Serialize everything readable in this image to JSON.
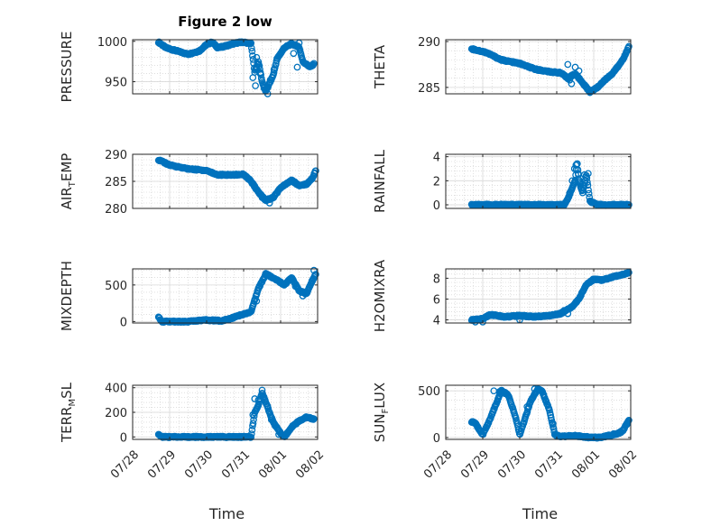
{
  "figure": {
    "title": "Figure 2 low"
  },
  "colors": {
    "marker": "#0072BD",
    "axis": "#262626",
    "grid": "#cccccc",
    "background": "#ffffff"
  },
  "chart_data": [
    {
      "id": "pressure",
      "type": "scatter",
      "title": "Figure 2 low",
      "ylabel_parts": [
        "PRESSURE"
      ],
      "xlabel": "",
      "ylim": [
        935,
        1002
      ],
      "yticks": [
        950,
        1000
      ],
      "xlim": [
        "07/28",
        "08/02"
      ],
      "x_unit": "days since 07/28",
      "x_ticks_shown": false,
      "keyframes": [
        [
          0.7,
          999
        ],
        [
          0.9,
          992
        ],
        [
          1.2,
          988
        ],
        [
          1.5,
          984
        ],
        [
          1.8,
          988
        ],
        [
          2.0,
          996
        ],
        [
          2.15,
          999
        ],
        [
          2.3,
          992
        ],
        [
          2.5,
          994
        ],
        [
          2.8,
          998
        ],
        [
          3.0,
          999
        ],
        [
          3.1,
          998
        ],
        [
          3.2,
          997
        ],
        [
          3.3,
          962
        ],
        [
          3.4,
          975
        ],
        [
          3.5,
          950
        ],
        [
          3.6,
          938
        ],
        [
          3.7,
          948
        ],
        [
          3.8,
          958
        ],
        [
          3.9,
          978
        ],
        [
          4.1,
          992
        ],
        [
          4.3,
          997
        ],
        [
          4.5,
          993
        ],
        [
          4.6,
          975
        ],
        [
          4.8,
          968
        ],
        [
          4.9,
          972
        ]
      ],
      "scatter_extra": [
        [
          3.25,
          955
        ],
        [
          3.32,
          945
        ],
        [
          3.35,
          980
        ],
        [
          3.45,
          960
        ],
        [
          3.55,
          942
        ],
        [
          3.65,
          935
        ],
        [
          3.72,
          952
        ],
        [
          3.82,
          965
        ],
        [
          4.35,
          985
        ],
        [
          4.45,
          968
        ],
        [
          4.5,
          998
        ]
      ]
    },
    {
      "id": "theta",
      "type": "scatter",
      "ylabel_parts": [
        "THETA"
      ],
      "xlabel": "",
      "ylim": [
        284.3,
        290.2
      ],
      "yticks": [
        285,
        290
      ],
      "xlim": [
        "07/28",
        "08/02"
      ],
      "x_ticks_shown": false,
      "keyframes": [
        [
          0.7,
          289.2
        ],
        [
          1.1,
          288.8
        ],
        [
          1.5,
          288.0
        ],
        [
          2.0,
          287.6
        ],
        [
          2.4,
          287.0
        ],
        [
          2.8,
          286.7
        ],
        [
          3.1,
          286.6
        ],
        [
          3.3,
          286.0
        ],
        [
          3.5,
          286.5
        ],
        [
          3.7,
          285.5
        ],
        [
          3.9,
          284.5
        ],
        [
          4.1,
          285.0
        ],
        [
          4.3,
          285.8
        ],
        [
          4.5,
          286.5
        ],
        [
          4.7,
          287.5
        ],
        [
          4.85,
          288.5
        ],
        [
          4.95,
          289.5
        ]
      ],
      "scatter_extra": [
        [
          3.3,
          287.5
        ],
        [
          3.35,
          285.8
        ],
        [
          3.5,
          287.2
        ],
        [
          3.6,
          286.8
        ],
        [
          3.4,
          285.4
        ]
      ]
    },
    {
      "id": "air_temp",
      "type": "scatter",
      "ylabel_parts": [
        "AIR",
        "T",
        "EMP"
      ],
      "xlabel": "",
      "ylim": [
        280,
        290
      ],
      "yticks": [
        280,
        285,
        290
      ],
      "xlim": [
        "07/28",
        "08/02"
      ],
      "x_ticks_shown": false,
      "keyframes": [
        [
          0.7,
          289.0
        ],
        [
          1.0,
          288.0
        ],
        [
          1.5,
          287.3
        ],
        [
          2.0,
          287.0
        ],
        [
          2.3,
          286.2
        ],
        [
          2.7,
          286.2
        ],
        [
          3.0,
          286.3
        ],
        [
          3.2,
          285.0
        ],
        [
          3.4,
          283.0
        ],
        [
          3.6,
          281.5
        ],
        [
          3.8,
          282.0
        ],
        [
          4.0,
          283.8
        ],
        [
          4.3,
          285.2
        ],
        [
          4.5,
          284.2
        ],
        [
          4.7,
          284.5
        ],
        [
          4.85,
          285.5
        ],
        [
          4.95,
          287.0
        ]
      ],
      "scatter_extra": [
        [
          3.3,
          284.0
        ],
        [
          3.5,
          282.0
        ],
        [
          3.7,
          281.0
        ]
      ]
    },
    {
      "id": "rainfall",
      "type": "scatter",
      "ylabel_parts": [
        "RAINFALL"
      ],
      "xlabel": "",
      "ylim": [
        -0.3,
        4.2
      ],
      "yticks": [
        0,
        2,
        4
      ],
      "xlim": [
        "07/28",
        "08/02"
      ],
      "x_ticks_shown": false,
      "keyframes": [
        [
          0.7,
          0
        ],
        [
          3.2,
          0
        ],
        [
          3.3,
          0.5
        ],
        [
          3.5,
          2.0
        ],
        [
          3.55,
          3.6
        ],
        [
          3.6,
          2.0
        ],
        [
          3.7,
          1.0
        ],
        [
          3.8,
          2.5
        ],
        [
          3.9,
          0.3
        ],
        [
          4.1,
          0
        ],
        [
          4.95,
          0
        ]
      ],
      "scatter_extra": [
        [
          3.35,
          1.0
        ],
        [
          3.42,
          2.0
        ],
        [
          3.48,
          3.0
        ],
        [
          3.52,
          3.3
        ],
        [
          3.58,
          2.6
        ],
        [
          3.65,
          1.8
        ],
        [
          3.75,
          2.5
        ],
        [
          3.85,
          2.6
        ],
        [
          3.95,
          0.2
        ],
        [
          4.05,
          0.1
        ]
      ]
    },
    {
      "id": "mixdepth",
      "type": "scatter",
      "ylabel_parts": [
        "MIXDEPTH"
      ],
      "xlabel": "",
      "ylim": [
        -20,
        720
      ],
      "yticks": [
        0,
        500
      ],
      "xlim": [
        "07/28",
        "08/02"
      ],
      "x_ticks_shown": false,
      "keyframes": [
        [
          0.7,
          60
        ],
        [
          0.8,
          0
        ],
        [
          1.5,
          0
        ],
        [
          2.0,
          20
        ],
        [
          2.4,
          10
        ],
        [
          2.7,
          50
        ],
        [
          3.0,
          100
        ],
        [
          3.2,
          130
        ],
        [
          3.4,
          450
        ],
        [
          3.6,
          650
        ],
        [
          3.9,
          570
        ],
        [
          4.1,
          500
        ],
        [
          4.3,
          600
        ],
        [
          4.5,
          420
        ],
        [
          4.7,
          380
        ],
        [
          4.8,
          500
        ],
        [
          4.95,
          650
        ]
      ],
      "scatter_extra": [
        [
          3.3,
          300
        ],
        [
          3.35,
          280
        ],
        [
          4.4,
          480
        ],
        [
          4.6,
          350
        ],
        [
          4.85,
          560
        ],
        [
          4.9,
          700
        ]
      ]
    },
    {
      "id": "h2omixra",
      "type": "scatter",
      "ylabel_parts": [
        "H2OMIXRA"
      ],
      "xlabel": "",
      "ylim": [
        3.7,
        8.9
      ],
      "yticks": [
        4,
        6,
        8
      ],
      "xlim": [
        "07/28",
        "08/02"
      ],
      "x_ticks_shown": false,
      "keyframes": [
        [
          0.7,
          4.0
        ],
        [
          1.0,
          4.1
        ],
        [
          1.2,
          4.5
        ],
        [
          1.6,
          4.3
        ],
        [
          2.0,
          4.4
        ],
        [
          2.4,
          4.3
        ],
        [
          2.8,
          4.4
        ],
        [
          3.1,
          4.6
        ],
        [
          3.4,
          5.2
        ],
        [
          3.6,
          6.0
        ],
        [
          3.8,
          7.4
        ],
        [
          4.0,
          7.9
        ],
        [
          4.2,
          7.8
        ],
        [
          4.5,
          8.1
        ],
        [
          4.7,
          8.3
        ],
        [
          4.95,
          8.5
        ]
      ],
      "scatter_extra": [
        [
          0.8,
          3.8
        ],
        [
          1.0,
          3.8
        ],
        [
          2.0,
          4.0
        ],
        [
          3.2,
          4.9
        ],
        [
          3.3,
          4.6
        ]
      ]
    },
    {
      "id": "terr_msl",
      "type": "scatter",
      "ylabel_parts": [
        "TERR",
        "M",
        "SL"
      ],
      "xlabel": "Time",
      "ylim": [
        -20,
        420
      ],
      "yticks": [
        0,
        200,
        400
      ],
      "xlim": [
        "07/28",
        "08/02"
      ],
      "x_ticks_shown": true,
      "xtick_labels": [
        "07/28",
        "07/29",
        "07/30",
        "07/31",
        "08/01",
        "08/02"
      ],
      "keyframes": [
        [
          0.7,
          20
        ],
        [
          0.8,
          0
        ],
        [
          3.2,
          0
        ],
        [
          3.3,
          200
        ],
        [
          3.4,
          260
        ],
        [
          3.5,
          360
        ],
        [
          3.6,
          280
        ],
        [
          3.7,
          200
        ],
        [
          3.8,
          120
        ],
        [
          4.0,
          30
        ],
        [
          4.1,
          0
        ],
        [
          4.3,
          80
        ],
        [
          4.5,
          130
        ],
        [
          4.7,
          160
        ],
        [
          4.9,
          145
        ]
      ],
      "scatter_extra": [
        [
          3.25,
          180
        ],
        [
          3.3,
          310
        ],
        [
          3.4,
          300
        ],
        [
          3.5,
          380
        ],
        [
          3.55,
          320
        ],
        [
          3.65,
          250
        ],
        [
          3.75,
          140
        ],
        [
          3.85,
          90
        ],
        [
          3.95,
          20
        ]
      ]
    },
    {
      "id": "sun_flux",
      "type": "scatter",
      "ylabel_parts": [
        "SUN",
        "F",
        "LUX"
      ],
      "xlabel": "Time",
      "ylim": [
        -20,
        560
      ],
      "yticks": [
        0,
        500
      ],
      "xlim": [
        "07/28",
        "08/02"
      ],
      "x_ticks_shown": true,
      "xtick_labels": [
        "07/28",
        "07/29",
        "07/30",
        "07/31",
        "08/01",
        "08/02"
      ],
      "keyframes": [
        [
          0.7,
          170
        ],
        [
          0.8,
          150
        ],
        [
          1.0,
          30
        ],
        [
          1.2,
          200
        ],
        [
          1.4,
          400
        ],
        [
          1.5,
          510
        ],
        [
          1.7,
          450
        ],
        [
          1.9,
          200
        ],
        [
          2.0,
          30
        ],
        [
          2.1,
          150
        ],
        [
          2.3,
          400
        ],
        [
          2.5,
          520
        ],
        [
          2.6,
          500
        ],
        [
          2.8,
          300
        ],
        [
          2.95,
          30
        ],
        [
          3.1,
          10
        ],
        [
          3.5,
          20
        ],
        [
          3.7,
          10
        ],
        [
          3.9,
          0
        ],
        [
          4.1,
          0
        ],
        [
          4.3,
          10
        ],
        [
          4.5,
          30
        ],
        [
          4.7,
          50
        ],
        [
          4.8,
          80
        ],
        [
          4.95,
          190
        ]
      ],
      "scatter_extra": [
        [
          1.3,
          500
        ],
        [
          1.45,
          490
        ],
        [
          1.6,
          470
        ],
        [
          2.2,
          330
        ],
        [
          2.4,
          520
        ],
        [
          2.7,
          400
        ],
        [
          2.9,
          150
        ],
        [
          4.6,
          40
        ],
        [
          4.9,
          140
        ]
      ]
    }
  ]
}
